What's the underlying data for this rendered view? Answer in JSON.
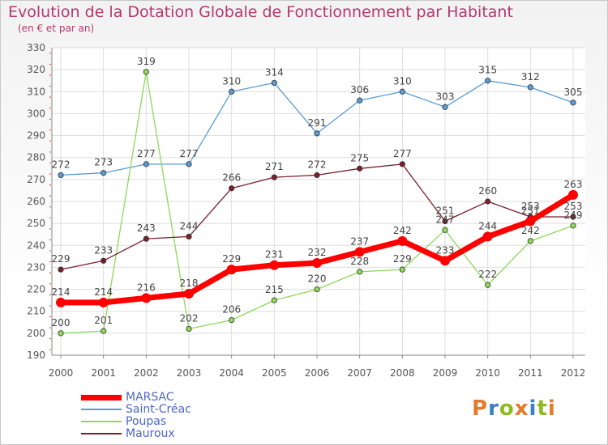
{
  "title": "Evolution de la Dotation Globale de Fonctionnement par Habitant",
  "subtitle": "(en € et par an)",
  "logo": {
    "text": "Proxiti",
    "colors": [
      "#e8792c",
      "#3a7fc4",
      "#8fbc1d",
      "#e8792c",
      "#3a7fc4",
      "#8fbc1d",
      "#e8792c"
    ]
  },
  "chart_data": {
    "type": "line",
    "title": "Evolution de la Dotation Globale de Fonctionnement par Habitant",
    "subtitle": "(en € et par an)",
    "xlabel": "",
    "ylabel": "",
    "x": [
      "2000",
      "2001",
      "2002",
      "2003",
      "2004",
      "2005",
      "2006",
      "2007",
      "2008",
      "2009",
      "2010",
      "2011",
      "2012"
    ],
    "ylim": [
      190,
      330
    ],
    "yticks": [
      190,
      200,
      210,
      220,
      230,
      240,
      250,
      260,
      270,
      280,
      290,
      300,
      310,
      320,
      330
    ],
    "grid": true,
    "legend_position": "bottom-left",
    "series": [
      {
        "name": "MARSAC",
        "color": "#ff0000",
        "values": [
          214,
          214,
          216,
          218,
          229,
          231,
          232,
          237,
          242,
          233,
          244,
          251,
          263
        ]
      },
      {
        "name": "Saint-Créac",
        "color": "#5a9bd4",
        "values": [
          272,
          273,
          277,
          277,
          310,
          314,
          291,
          306,
          310,
          303,
          315,
          312,
          305
        ]
      },
      {
        "name": "Poupas",
        "color": "#8ed85a",
        "values": [
          200,
          201,
          319,
          202,
          206,
          215,
          220,
          228,
          229,
          247,
          222,
          242,
          249
        ]
      },
      {
        "name": "Mauroux",
        "color": "#7a1f2b",
        "values": [
          229,
          233,
          243,
          244,
          266,
          271,
          272,
          275,
          277,
          251,
          260,
          253,
          253
        ]
      }
    ]
  }
}
